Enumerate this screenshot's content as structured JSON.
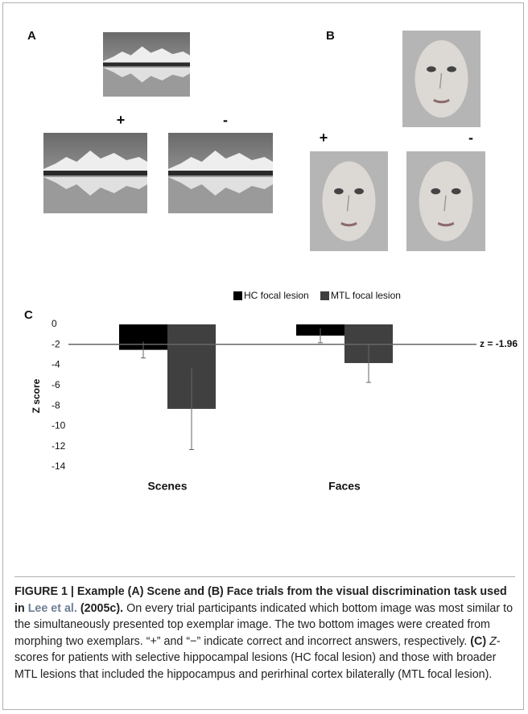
{
  "figure": {
    "panel_a": {
      "label": "A",
      "plus": "+",
      "minus": "-"
    },
    "panel_b": {
      "label": "B",
      "plus": "+",
      "minus": "-"
    }
  },
  "chart_data": {
    "type": "bar",
    "panel_label": "C",
    "y_label": "Z score",
    "categories": [
      "Scenes",
      "Faces"
    ],
    "series": [
      {
        "name": "HC focal lesion",
        "color": "#000000",
        "values": [
          -2.5,
          -1.1
        ],
        "errors": [
          0.8,
          0.7
        ]
      },
      {
        "name": "MTL focal lesion",
        "color": "#404040",
        "values": [
          -8.3,
          -3.8
        ],
        "errors": [
          4.0,
          1.9
        ]
      }
    ],
    "ylim": [
      -14,
      0
    ],
    "yticks": [
      0,
      -2,
      -4,
      -6,
      -8,
      -10,
      -12,
      -14
    ],
    "reference_line": {
      "value": -1.96,
      "label": "z = -1.96"
    }
  },
  "caption": {
    "lead": "FIGURE 1 | Example (A) Scene and (B) Face trials from the visual discrimination task used in ",
    "link": "Lee et al.",
    "year": " (2005c).",
    "body": " On every trial participants indicated which bottom image was most similar to the simultaneously presented top exemplar image. The two bottom images were created from morphing two exemplars. “+” and “−” indicate correct and incorrect answers, respectively. ",
    "c_label": "(C)",
    "z": "Z",
    "rest": "-scores for patients with selective hippocampal lesions (HC focal lesion) and those with broader MTL lesions that included the hippocampus and perirhinal cortex bilaterally (MTL focal lesion)."
  }
}
